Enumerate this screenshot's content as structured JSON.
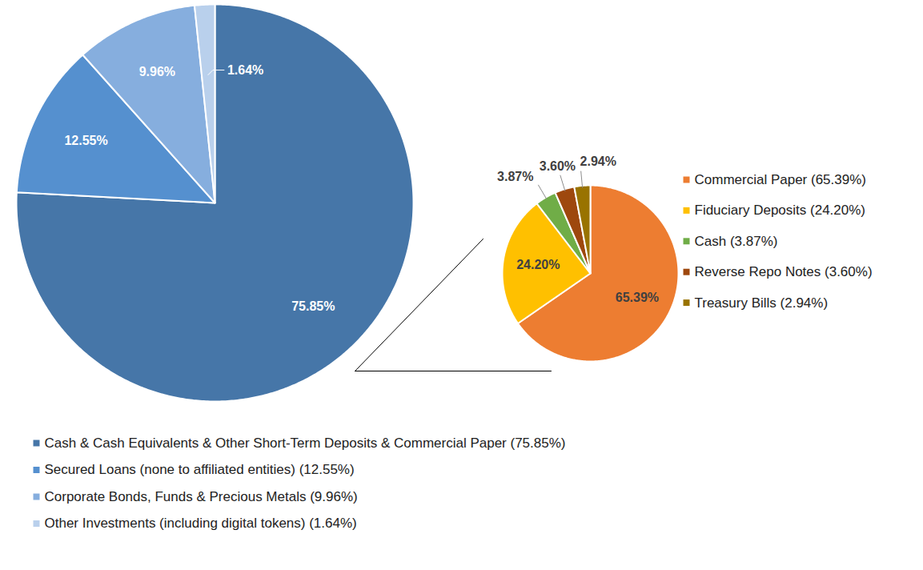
{
  "chart_data": [
    {
      "type": "pie",
      "categories": [
        "Cash & Cash Equivalents & Other Short-Term Deposits & Commercial Paper (75.85%)",
        "Secured Loans (none to affiliated entities) (12.55%)",
        "Corporate Bonds, Funds & Precious Metals (9.96%)",
        "Other Investments (including digital tokens) (1.64%)"
      ],
      "values": [
        75.85,
        12.55,
        9.96,
        1.64
      ],
      "value_labels": [
        "75.85%",
        "12.55%",
        "9.96%",
        "1.64%"
      ],
      "colors": [
        "#4676a8",
        "#5590cf",
        "#86aede",
        "#b9d0ec"
      ],
      "data_labels": true,
      "legend": "bottom"
    },
    {
      "type": "pie",
      "categories": [
        "Commercial Paper (65.39%)",
        "Fiduciary Deposits (24.20%)",
        "Cash (3.87%)",
        "Reverse Repo Notes (3.60%)",
        "Treasury Bills (2.94%)"
      ],
      "values": [
        65.39,
        24.2,
        3.87,
        3.6,
        2.94
      ],
      "value_labels": [
        "65.39%",
        "24.20%",
        "3.87%",
        "3.60%",
        "2.94%"
      ],
      "colors": [
        "#ed7d31",
        "#ffc000",
        "#70ad47",
        "#9e480e",
        "#997300"
      ],
      "data_labels": true,
      "legend": "right"
    }
  ]
}
